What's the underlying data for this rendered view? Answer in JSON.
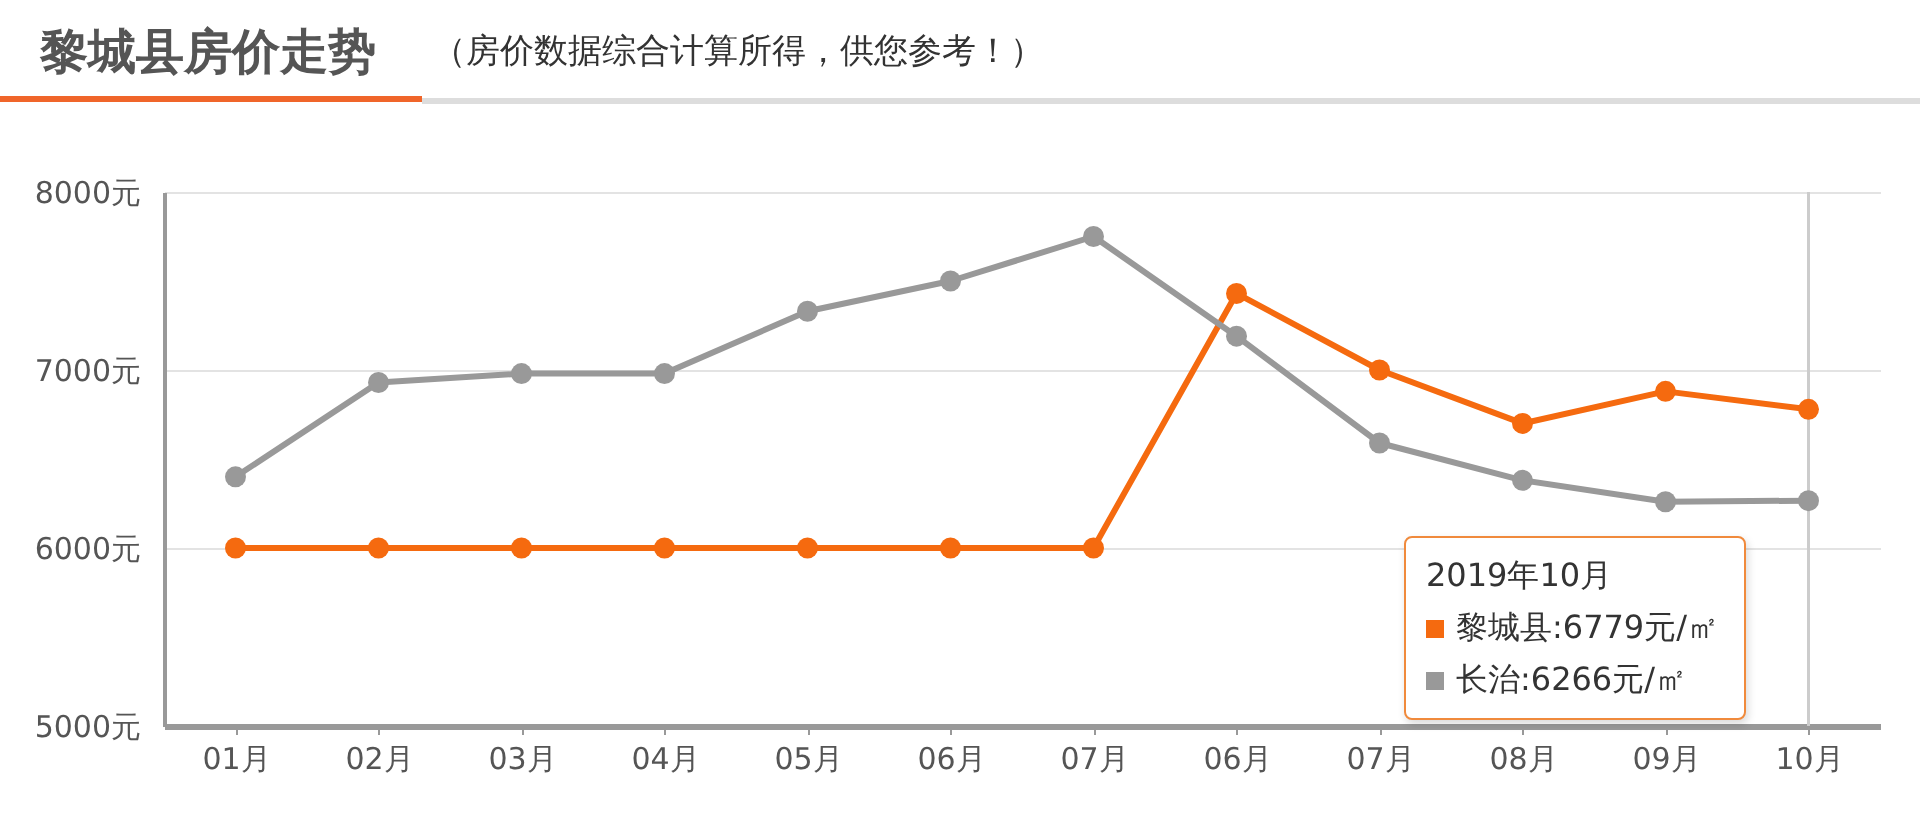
{
  "chart_data": {
    "type": "line",
    "title": "黎城县房价走势",
    "subtitle": "（房价数据综合计算所得，供您参考！）",
    "categories": [
      "01月",
      "02月",
      "03月",
      "04月",
      "05月",
      "06月",
      "07月",
      "06月",
      "07月",
      "08月",
      "09月",
      "10月"
    ],
    "series": [
      {
        "color": "#f56a0f",
        "values": [
          6000,
          6000,
          6000,
          6000,
          6000,
          6000,
          6000,
          7430,
          7000,
          6700,
          6880,
          6779
        ]
      },
      {
        "color": "#999999",
        "values": [
          6400,
          6930,
          6980,
          6980,
          7330,
          7500,
          7750,
          7190,
          6590,
          6380,
          6260,
          6266
        ]
      }
    ],
    "ylim": [
      5000,
      8000
    ],
    "yticks": [
      {
        "value": 5000,
        "label": "5000元"
      },
      {
        "value": 6000,
        "label": "6000元"
      },
      {
        "value": 7000,
        "label": "7000元"
      },
      {
        "value": 8000,
        "label": "8000元"
      }
    ],
    "grid": "y",
    "marker": "circle",
    "line_style": "solid",
    "ref_lines": [
      {
        "axis": "x",
        "value": "10月",
        "color": "#cccccc"
      }
    ],
    "annotations": [
      "2019年10月",
      "黎城县:6779元/㎡",
      "长治:6266元/㎡"
    ]
  }
}
